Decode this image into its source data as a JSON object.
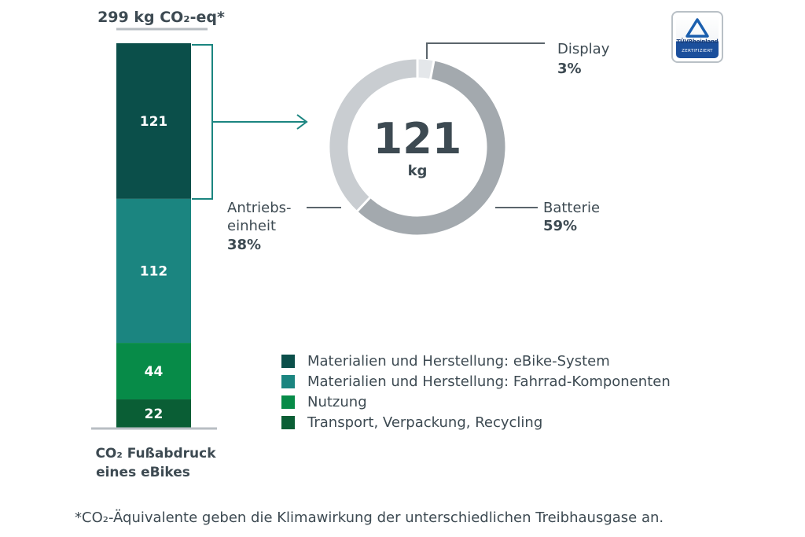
{
  "chart_data": [
    {
      "type": "bar",
      "stacked": true,
      "title": "299 kg CO₂-eq*",
      "xlabel_line1": "CO₂ Fußabdruck",
      "xlabel_line2": "eines eBikes",
      "total": 299,
      "series": [
        {
          "name": "Materialien und Herstellung: eBike-System",
          "value": 121,
          "label": "121",
          "color": "#0b4f4a"
        },
        {
          "name": "Materialien und Herstellung: Fahrrad-Komponenten",
          "value": 112,
          "label": "112",
          "color": "#1b8580"
        },
        {
          "name": "Nutzung",
          "value": 44,
          "label": "44",
          "color": "#078b48"
        },
        {
          "name": "Transport, Verpackung, Recycling",
          "value": 22,
          "label": "22",
          "color": "#0a5e35"
        }
      ]
    },
    {
      "type": "pie",
      "donut": true,
      "center_value": "121",
      "center_unit": "kg",
      "slices": [
        {
          "name": "Display",
          "value": 3,
          "label": "3%",
          "color": "#e4e7ea"
        },
        {
          "name": "Batterie",
          "value": 59,
          "label": "59%",
          "color": "#a3a9ae"
        },
        {
          "name": "Antriebs-einheit",
          "name_line1": "Antriebs-",
          "name_line2": "einheit",
          "value": 38,
          "label": "38%",
          "color": "#c9cdd1"
        }
      ]
    }
  ],
  "legend": [
    {
      "label": "Materialien und Herstellung: eBike-System",
      "color": "#0b4f4a"
    },
    {
      "label": "Materialien und Herstellung: Fahrrad-Komponenten",
      "color": "#1b8580"
    },
    {
      "label": "Nutzung",
      "color": "#078b48"
    },
    {
      "label": "Transport, Verpackung, Recycling",
      "color": "#0a5e35"
    }
  ],
  "footnote": "*CO₂-Äquivalente geben die Klimawirkung der unterschiedlichen Treibhausgase an.",
  "badge": {
    "brand": "TÜVRheinland",
    "certified": "ZERTIFIZIERT",
    "icon": "tuv-triangle-logo"
  },
  "colors": {
    "text": "#3d4a52",
    "connector": "#1b8580",
    "leader": "#5b656c",
    "baseline": "#b8bec3"
  }
}
